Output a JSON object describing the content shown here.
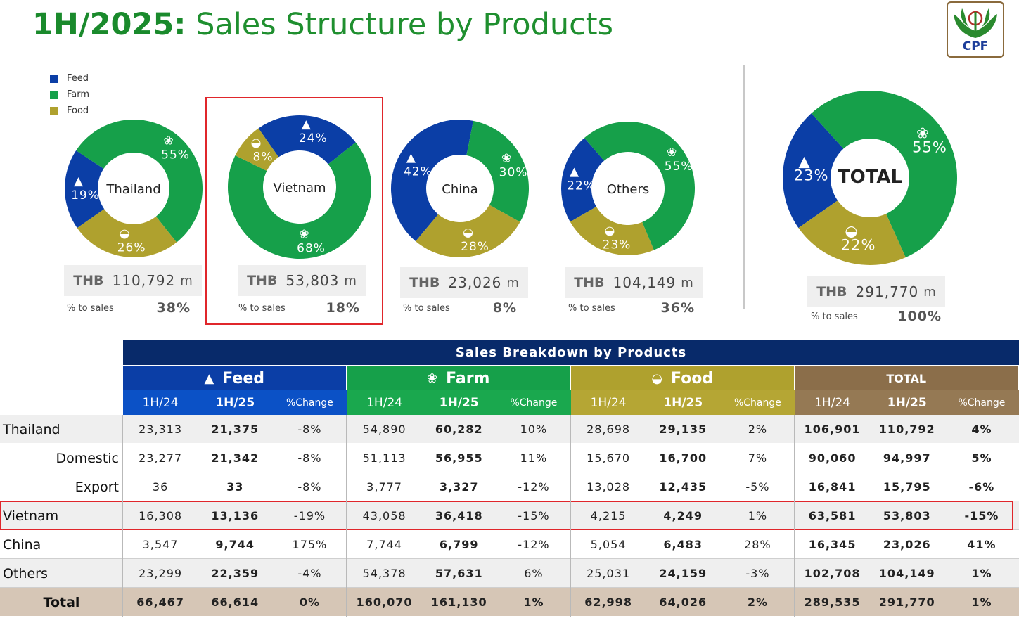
{
  "header": {
    "title_period": "1H/2025:",
    "title_rest": "Sales Structure by Products",
    "logo_text": "CPF"
  },
  "legend": [
    {
      "label": "Feed",
      "color": "#0b3ea6"
    },
    {
      "label": "Farm",
      "color": "#16a04a"
    },
    {
      "label": "Food",
      "color": "#afa12e"
    }
  ],
  "chart_data": [
    {
      "type": "pie",
      "title": "Thailand",
      "categories": [
        "Feed",
        "Farm",
        "Food"
      ],
      "values": [
        19,
        55,
        26
      ],
      "labels": [
        "19%",
        "55%",
        "26%"
      ],
      "thb_currency": "THB",
      "thb_amount": "110,792",
      "thb_unit": "m",
      "pct_label": "% to sales",
      "pct_value": "38%"
    },
    {
      "type": "pie",
      "title": "Vietnam",
      "categories": [
        "Feed",
        "Farm",
        "Food"
      ],
      "values": [
        24,
        68,
        8
      ],
      "labels": [
        "24%",
        "68%",
        "8%"
      ],
      "thb_currency": "THB",
      "thb_amount": "53,803",
      "thb_unit": "m",
      "pct_label": "% to sales",
      "pct_value": "18%"
    },
    {
      "type": "pie",
      "title": "China",
      "categories": [
        "Feed",
        "Farm",
        "Food"
      ],
      "values": [
        42,
        30,
        28
      ],
      "labels": [
        "42%",
        "30%",
        "28%"
      ],
      "thb_currency": "THB",
      "thb_amount": "23,026",
      "thb_unit": "m",
      "pct_label": "% to sales",
      "pct_value": "8%"
    },
    {
      "type": "pie",
      "title": "Others",
      "categories": [
        "Feed",
        "Farm",
        "Food"
      ],
      "values": [
        22,
        55,
        23
      ],
      "labels": [
        "22%",
        "55%",
        "23%"
      ],
      "thb_currency": "THB",
      "thb_amount": "104,149",
      "thb_unit": "m",
      "pct_label": "% to sales",
      "pct_value": "36%"
    },
    {
      "type": "pie",
      "title": "TOTAL",
      "categories": [
        "Feed",
        "Farm",
        "Food"
      ],
      "values": [
        23,
        55,
        22
      ],
      "labels": [
        "23%",
        "55%",
        "22%"
      ],
      "thb_currency": "THB",
      "thb_amount": "291,770",
      "thb_unit": "m",
      "pct_label": "% to sales",
      "pct_value": "100%"
    },
    {
      "type": "table",
      "title": "Sales Breakdown by Products",
      "groups": [
        {
          "label": "Feed",
          "icon": "feed-icon",
          "color": "#0b3ea6",
          "sub_color": "#0b51c6"
        },
        {
          "label": "Farm",
          "icon": "farm-icon",
          "color": "#16a04a",
          "sub_color": "#1aa84e"
        },
        {
          "label": "Food",
          "icon": "food-icon",
          "color": "#afa12e",
          "sub_color": "#b5a634"
        },
        {
          "label": "TOTAL",
          "icon": "",
          "color": "#8b6e4a",
          "sub_color": "#957954"
        }
      ],
      "sub_headers": [
        "1H/24",
        "1H/25",
        "%Change"
      ],
      "rows": [
        {
          "label": "Thailand",
          "indent": false,
          "highlight": false,
          "shade": true,
          "values": [
            "23,313",
            "21,375",
            "-8%",
            "54,890",
            "60,282",
            "10%",
            "28,698",
            "29,135",
            "2%",
            "106,901",
            "110,792",
            "4%"
          ]
        },
        {
          "label": "Domestic",
          "indent": true,
          "highlight": false,
          "shade": false,
          "values": [
            "23,277",
            "21,342",
            "-8%",
            "51,113",
            "56,955",
            "11%",
            "15,670",
            "16,700",
            "7%",
            "90,060",
            "94,997",
            "5%"
          ]
        },
        {
          "label": "Export",
          "indent": true,
          "highlight": false,
          "shade": false,
          "values": [
            "36",
            "33",
            "-8%",
            "3,777",
            "3,327",
            "-12%",
            "13,028",
            "12,435",
            "-5%",
            "16,841",
            "15,795",
            "-6%"
          ]
        },
        {
          "label": "Vietnam",
          "indent": false,
          "highlight": true,
          "shade": true,
          "values": [
            "16,308",
            "13,136",
            "-19%",
            "43,058",
            "36,418",
            "-15%",
            "4,215",
            "4,249",
            "1%",
            "63,581",
            "53,803",
            "-15%"
          ]
        },
        {
          "label": "China",
          "indent": false,
          "highlight": false,
          "shade": false,
          "values": [
            "3,547",
            "9,744",
            "175%",
            "7,744",
            "6,799",
            "-12%",
            "5,054",
            "6,483",
            "28%",
            "16,345",
            "23,026",
            "41%"
          ]
        },
        {
          "label": "Others",
          "indent": false,
          "highlight": false,
          "shade": true,
          "values": [
            "23,299",
            "22,359",
            "-4%",
            "54,378",
            "57,631",
            "6%",
            "25,031",
            "24,159",
            "-3%",
            "102,708",
            "104,149",
            "1%"
          ]
        },
        {
          "label": "Total",
          "indent": false,
          "highlight": false,
          "shade": false,
          "total": true,
          "values": [
            "66,467",
            "66,614",
            "0%",
            "160,070",
            "161,130",
            "1%",
            "62,998",
            "64,026",
            "2%",
            "289,535",
            "291,770",
            "1%"
          ]
        }
      ]
    }
  ],
  "colors": {
    "feed": "#0b3ea6",
    "farm": "#16a04a",
    "food": "#afa12e",
    "highlight": "#e0262b",
    "table_title_bg": "#082a6a",
    "total_row_bg": "#d6c6b6",
    "shade_bg": "#efefef"
  }
}
